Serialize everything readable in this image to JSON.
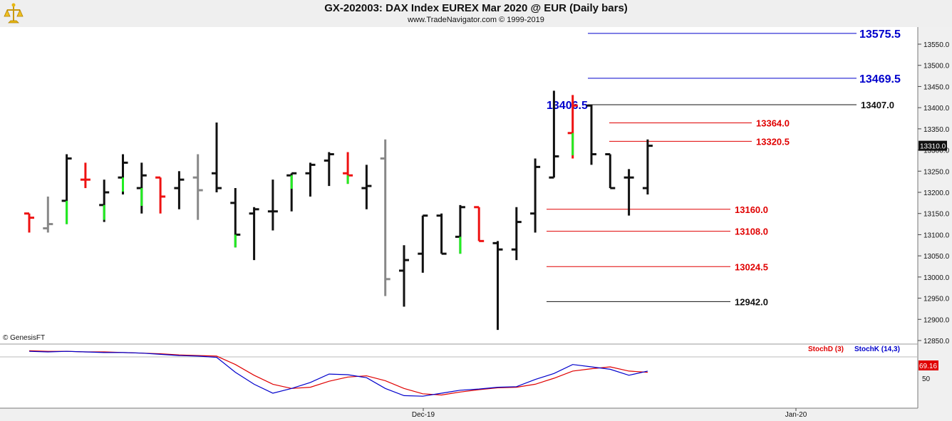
{
  "header": {
    "title": "GX-202003:  DAX Index EUREX Mar 2020 @ EUR  (Daily bars)",
    "subtitle": "www.TradeNavigator.com © 1999-2019"
  },
  "copyright": "© GenesisFT",
  "colors": {
    "up_bar": "#111111",
    "red_level": "#e00000",
    "blue_level": "#0000cc",
    "green_tick": "#22ee22",
    "red_tick": "#ee1111",
    "gray_tick": "#888888",
    "stoch_d": "#e00000",
    "stoch_k": "#0000cc"
  },
  "chart_data": {
    "type": "ohlc",
    "y_axis": {
      "range": [
        12830,
        13575
      ],
      "ticks": [
        12850,
        12900,
        12950,
        13000,
        13050,
        13100,
        13150,
        13200,
        13250,
        13300,
        13350,
        13400,
        13450,
        13500,
        13550
      ],
      "tick_labels": [
        "12850.0",
        "12900.0",
        "12950.0",
        "13000.0",
        "13050.0",
        "13100.0",
        "13150.0",
        "13200.0",
        "13250.0",
        "13300.0",
        "13350.0",
        "13400.0",
        "13450.0",
        "13500.0",
        "13550.0"
      ],
      "last_price": 13310,
      "last_price_label": "13310.0"
    },
    "x_axis": {
      "date_labels": [
        "Dec-19",
        "Jan-20"
      ]
    },
    "bars": [
      {
        "o": 13150,
        "h": 13150,
        "l": 13105,
        "c": 13140,
        "color": "red"
      },
      {
        "o": 13115,
        "h": 13190,
        "l": 13105,
        "c": 13125,
        "color": "gray"
      },
      {
        "o": 13180,
        "h": 13290,
        "l": 13125,
        "c": 13280,
        "color": "black",
        "tick": "green"
      },
      {
        "o": 13230,
        "h": 13270,
        "l": 13210,
        "c": 13230,
        "color": "red"
      },
      {
        "o": 13170,
        "h": 13230,
        "l": 13130,
        "c": 13200,
        "color": "black",
        "tick": "green"
      },
      {
        "o": 13235,
        "h": 13290,
        "l": 13195,
        "c": 13270,
        "color": "black",
        "tick": "green"
      },
      {
        "o": 13210,
        "h": 13270,
        "l": 13150,
        "c": 13240,
        "color": "black",
        "tick": "green"
      },
      {
        "o": 13235,
        "h": 13235,
        "l": 13150,
        "c": 13190,
        "color": "red"
      },
      {
        "o": 13210,
        "h": 13250,
        "l": 13160,
        "c": 13230,
        "color": "black"
      },
      {
        "o": 13235,
        "h": 13290,
        "l": 13135,
        "c": 13205,
        "color": "gray"
      },
      {
        "o": 13245,
        "h": 13365,
        "l": 13200,
        "c": 13210,
        "color": "black"
      },
      {
        "o": 13175,
        "h": 13210,
        "l": 13070,
        "c": 13100,
        "color": "black",
        "tick": "green"
      },
      {
        "o": 13150,
        "h": 13165,
        "l": 13040,
        "c": 13160,
        "color": "black"
      },
      {
        "o": 13155,
        "h": 13230,
        "l": 13110,
        "c": 13155,
        "color": "black"
      },
      {
        "o": 13240,
        "h": 13245,
        "l": 13155,
        "c": 13245,
        "color": "black",
        "tick": "green"
      },
      {
        "o": 13245,
        "h": 13270,
        "l": 13190,
        "c": 13265,
        "color": "black"
      },
      {
        "o": 13275,
        "h": 13295,
        "l": 13215,
        "c": 13290,
        "color": "black"
      },
      {
        "o": 13245,
        "h": 13295,
        "l": 13220,
        "c": 13240,
        "color": "red",
        "tick": "green"
      },
      {
        "o": 13210,
        "h": 13265,
        "l": 13160,
        "c": 13215,
        "color": "black"
      },
      {
        "o": 13280,
        "h": 13325,
        "l": 12955,
        "c": 12995,
        "color": "gray"
      },
      {
        "o": 13015,
        "h": 13075,
        "l": 12930,
        "c": 13040,
        "color": "black"
      },
      {
        "o": 13055,
        "h": 13145,
        "l": 13010,
        "c": 13145,
        "color": "black"
      },
      {
        "o": 13145,
        "h": 13150,
        "l": 13055,
        "c": 13055,
        "color": "black"
      },
      {
        "o": 13095,
        "h": 13170,
        "l": 13055,
        "c": 13165,
        "color": "black",
        "tick": "green"
      },
      {
        "o": 13165,
        "h": 13165,
        "l": 13085,
        "c": 13085,
        "color": "red"
      },
      {
        "o": 13080,
        "h": 13085,
        "l": 12875,
        "c": 13065,
        "color": "black"
      },
      {
        "o": 13065,
        "h": 13165,
        "l": 13040,
        "c": 13130,
        "color": "black"
      },
      {
        "o": 13150,
        "h": 13280,
        "l": 13105,
        "c": 13260,
        "color": "black"
      },
      {
        "o": 13235,
        "h": 13440,
        "l": 13235,
        "c": 13285,
        "color": "black"
      },
      {
        "o": 13340,
        "h": 13430,
        "l": 13280,
        "c": 13405,
        "color": "red",
        "tick": "green"
      },
      {
        "o": 13405,
        "h": 13407,
        "l": 13265,
        "c": 13290,
        "color": "black"
      },
      {
        "o": 13290,
        "h": 13290,
        "l": 13210,
        "c": 13210,
        "color": "black"
      },
      {
        "o": 13235,
        "h": 13255,
        "l": 13145,
        "c": 13235,
        "color": "black"
      },
      {
        "o": 13210,
        "h": 13325,
        "l": 13195,
        "c": 13310,
        "color": "black"
      }
    ],
    "levels": [
      {
        "value": 13575.5,
        "label": "13575.5",
        "color": "blue",
        "label_side": "right"
      },
      {
        "value": 13469.5,
        "label": "13469.5",
        "color": "blue",
        "label_side": "right"
      },
      {
        "value": 13407.0,
        "label": "13407.0",
        "color": "black",
        "label_side": "right",
        "left_label": "13406.5"
      },
      {
        "value": 13364.0,
        "label": "13364.0",
        "color": "red",
        "label_side": "right"
      },
      {
        "value": 13320.5,
        "label": "13320.5",
        "color": "red",
        "label_side": "right"
      },
      {
        "value": 13160.0,
        "label": "13160.0",
        "color": "red",
        "label_side": "right"
      },
      {
        "value": 13108.0,
        "label": "13108.0",
        "color": "red",
        "label_side": "right"
      },
      {
        "value": 13024.5,
        "label": "13024.5",
        "color": "red",
        "label_side": "right"
      },
      {
        "value": 12942.0,
        "label": "12942.0",
        "color": "black",
        "label_side": "right"
      }
    ],
    "stochastic": {
      "legend_d": "StochD (3)",
      "legend_k": "StochK (14,3)",
      "y_range": [
        0,
        100
      ],
      "tick_labels": [
        "50"
      ],
      "last_value_label": "69.16",
      "k_values": [
        95,
        94,
        95,
        94,
        93,
        93,
        92,
        90,
        88,
        87,
        85,
        60,
        40,
        25,
        33,
        43,
        57,
        56,
        51,
        33,
        21,
        20,
        25,
        30,
        32,
        35,
        36,
        48,
        58,
        73,
        69,
        65,
        55,
        62
      ],
      "d_values": [
        96,
        95,
        95,
        94,
        94,
        93,
        92,
        91,
        89,
        88,
        87,
        73,
        55,
        40,
        33,
        35,
        45,
        52,
        54,
        46,
        33,
        24,
        22,
        27,
        31,
        34,
        35,
        40,
        50,
        62,
        66,
        69,
        62,
        60
      ]
    }
  }
}
